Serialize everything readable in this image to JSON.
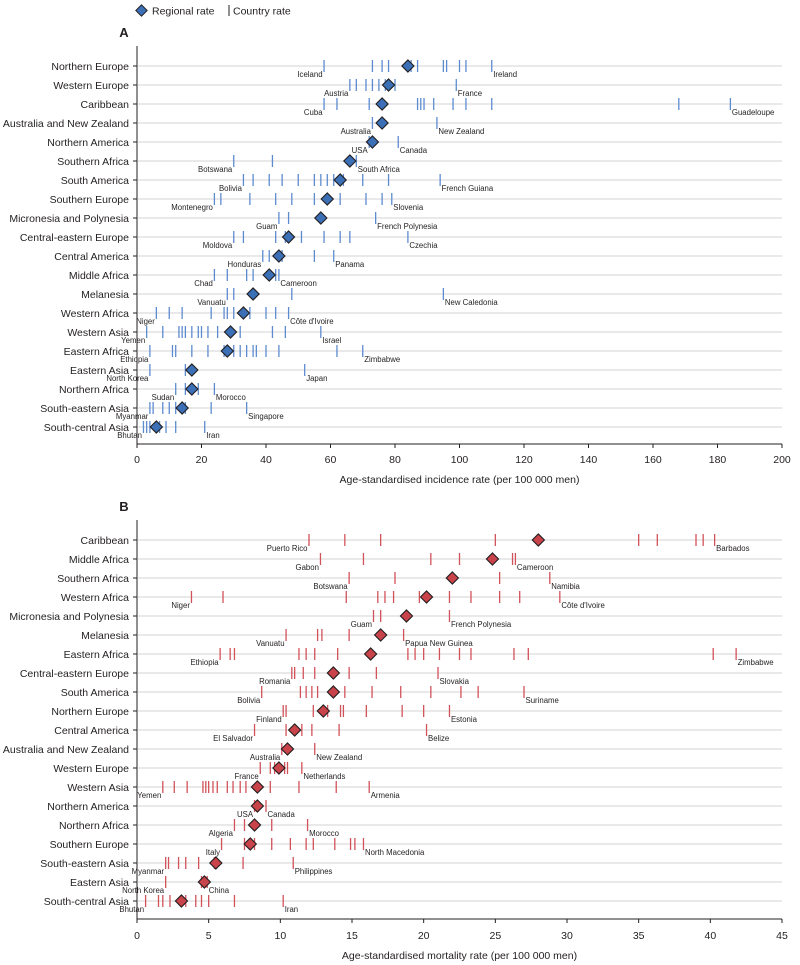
{
  "legend": {
    "regional": "Regional rate",
    "country": "Country rate"
  },
  "colors": {
    "incidence_marker": "#3b6fb6",
    "incidence_tick": "#5d8bd0",
    "mortality_marker": "#c9434a",
    "mortality_tick": "#d2525a",
    "gridline": "#a8a8a8"
  },
  "chart_data": [
    {
      "panel": "A",
      "type": "scatter",
      "xlabel": "Age-standardised incidence rate (per 100 000 men)",
      "xlim": [
        0,
        200
      ],
      "xticks": [
        0,
        20,
        40,
        60,
        80,
        100,
        120,
        140,
        160,
        180,
        200
      ],
      "rows": [
        {
          "region": "Northern Europe",
          "rate": 84,
          "countries": [
            58,
            73,
            76,
            78,
            85,
            87,
            95,
            96,
            100,
            102,
            110
          ],
          "low": "Iceland",
          "high": "Ireland"
        },
        {
          "region": "Western Europe",
          "rate": 78,
          "countries": [
            66,
            68,
            71,
            73,
            75,
            77,
            80,
            99
          ],
          "low": "Austria",
          "high": "France"
        },
        {
          "region": "Caribbean",
          "rate": 76,
          "countries": [
            58,
            62,
            72,
            87,
            88,
            89,
            92,
            98,
            102,
            110,
            168,
            184
          ],
          "low": "Cuba",
          "high": "Guadeloupe"
        },
        {
          "region": "Australia and New Zealand",
          "rate": 76,
          "countries": [
            73,
            93
          ],
          "low": "Australia",
          "high": "New Zealand"
        },
        {
          "region": "Northern America",
          "rate": 73,
          "countries": [
            72,
            81
          ],
          "low": "USA",
          "high": "Canada"
        },
        {
          "region": "Southern Africa",
          "rate": 66,
          "countries": [
            30,
            42,
            68
          ],
          "low": "Botswana",
          "high": "South Africa"
        },
        {
          "region": "South America",
          "rate": 63,
          "countries": [
            33,
            36,
            41,
            45,
            50,
            55,
            57,
            59,
            61,
            64,
            70,
            78,
            94
          ],
          "low": "Bolivia",
          "high": "French Guiana"
        },
        {
          "region": "Southern Europe",
          "rate": 59,
          "countries": [
            24,
            26,
            35,
            43,
            48,
            55,
            63,
            71,
            76,
            79
          ],
          "low": "Montenegro",
          "high": "Slovenia"
        },
        {
          "region": "Micronesia and Polynesia",
          "rate": 57,
          "countries": [
            44,
            47,
            74
          ],
          "low": "Guam",
          "high": "French Polynesia"
        },
        {
          "region": "Central-eastern Europe",
          "rate": 47,
          "countries": [
            30,
            33,
            43,
            46,
            51,
            58,
            63,
            66,
            84
          ],
          "low": "Moldova",
          "high": "Czechia"
        },
        {
          "region": "Central America",
          "rate": 44,
          "countries": [
            39,
            41,
            45,
            55,
            61
          ],
          "low": "Honduras",
          "high": "Panama"
        },
        {
          "region": "Middle Africa",
          "rate": 41,
          "countries": [
            24,
            28,
            34,
            36,
            43,
            44
          ],
          "low": "Chad",
          "high": "Cameroon"
        },
        {
          "region": "Melanesia",
          "rate": 36,
          "countries": [
            28,
            30,
            48,
            95
          ],
          "low": "Vanuatu",
          "high": "New Caledonia"
        },
        {
          "region": "Western Africa",
          "rate": 33,
          "countries": [
            6,
            10,
            14,
            23,
            27,
            28,
            30,
            35,
            40,
            43,
            47
          ],
          "low": "Niger",
          "high": "Côte d'Ivoire"
        },
        {
          "region": "Western Asia",
          "rate": 29,
          "countries": [
            3,
            8,
            13,
            14,
            15,
            17,
            19,
            20,
            22,
            25,
            32,
            42,
            46,
            57
          ],
          "low": "Yemen",
          "high": "Israel"
        },
        {
          "region": "Eastern Africa",
          "rate": 28,
          "countries": [
            4,
            11,
            12,
            17,
            22,
            27,
            30,
            32,
            34,
            36,
            37,
            40,
            44,
            62,
            70
          ],
          "low": "Ethiopia",
          "high": "Zimbabwe"
        },
        {
          "region": "Eastern Asia",
          "rate": 17,
          "countries": [
            4,
            15,
            52
          ],
          "low": "North Korea",
          "high": "Japan"
        },
        {
          "region": "Northern Africa",
          "rate": 17,
          "countries": [
            12,
            15,
            19,
            24
          ],
          "low": "Sudan",
          "high": "Morocco"
        },
        {
          "region": "South-eastern Asia",
          "rate": 14,
          "countries": [
            4,
            5,
            8,
            10,
            12,
            15,
            23,
            34
          ],
          "low": "Myanmar",
          "high": "Singapore"
        },
        {
          "region": "South-central Asia",
          "rate": 6,
          "countries": [
            2,
            3,
            4,
            7,
            9,
            12,
            21
          ],
          "low": "Bhutan",
          "high": "Iran"
        }
      ]
    },
    {
      "panel": "B",
      "type": "scatter",
      "xlabel": "Age-standardised mortality rate (per 100 000 men)",
      "xlim": [
        0,
        45
      ],
      "xticks": [
        0,
        5,
        10,
        15,
        20,
        25,
        30,
        35,
        40,
        45
      ],
      "rows": [
        {
          "region": "Caribbean",
          "rate": 28,
          "countries": [
            12,
            14.5,
            17,
            25,
            35,
            36.3,
            39,
            39.5,
            40.3
          ],
          "low": "Puerto Rico",
          "high": "Barbados"
        },
        {
          "region": "Middle Africa",
          "rate": 24.8,
          "countries": [
            12.8,
            15.8,
            20.5,
            22.5,
            26.2,
            26.4
          ],
          "low": "Gabon",
          "high": "Cameroon"
        },
        {
          "region": "Southern Africa",
          "rate": 22,
          "countries": [
            14.8,
            18,
            25.3,
            28.8
          ],
          "low": "Botswana",
          "high": "Namibia"
        },
        {
          "region": "Western Africa",
          "rate": 20.2,
          "countries": [
            3.8,
            6,
            14.6,
            16.8,
            17.3,
            17.9,
            19.7,
            21.8,
            23.3,
            25.3,
            26.7,
            29.5
          ],
          "low": "Niger",
          "high": "Côte d'Ivoire"
        },
        {
          "region": "Micronesia and Polynesia",
          "rate": 18.8,
          "countries": [
            16.5,
            17,
            21.8
          ],
          "low": "Guam",
          "high": "French Polynesia"
        },
        {
          "region": "Melanesia",
          "rate": 17,
          "countries": [
            10.4,
            12.6,
            12.9,
            14.8,
            18.6
          ],
          "low": "Vanuatu",
          "high": "Papua New Guinea"
        },
        {
          "region": "Eastern Africa",
          "rate": 16.3,
          "countries": [
            5.8,
            6.5,
            6.8,
            11.3,
            11.8,
            12.4,
            14,
            18.9,
            19.4,
            20,
            21.1,
            22.5,
            23.3,
            26.3,
            27.3,
            40.2,
            41.8
          ],
          "low": "Ethiopia",
          "high": "Zimbabwe"
        },
        {
          "region": "Central-eastern Europe",
          "rate": 13.7,
          "countries": [
            10.8,
            11,
            11.6,
            12.4,
            14.8,
            16.7,
            21
          ],
          "low": "Romania",
          "high": "Slovakia"
        },
        {
          "region": "South America",
          "rate": 13.7,
          "countries": [
            8.7,
            11.4,
            11.8,
            12.2,
            12.6,
            14.5,
            16.4,
            18.4,
            20.5,
            22.6,
            23.8,
            27
          ],
          "low": "Bolivia",
          "high": "Suriname"
        },
        {
          "region": "Northern Europe",
          "rate": 13,
          "countries": [
            10.2,
            10.4,
            12.3,
            13.3,
            14.2,
            14.4,
            16,
            18.5,
            20,
            21.8
          ],
          "low": "Finland",
          "high": "Estonia"
        },
        {
          "region": "Central America",
          "rate": 11,
          "countries": [
            8.2,
            10.4,
            11.5,
            12.2,
            14.1,
            20.2
          ],
          "low": "El Salvador",
          "high": "Belize"
        },
        {
          "region": "Australia and New Zealand",
          "rate": 10.5,
          "countries": [
            10.1,
            12.4
          ],
          "low": "Australia",
          "high": "New Zealand"
        },
        {
          "region": "Western Europe",
          "rate": 9.9,
          "countries": [
            8.6,
            9.3,
            9.6,
            10.3,
            10.5,
            11.5
          ],
          "low": "France",
          "high": "Netherlands"
        },
        {
          "region": "Western Asia",
          "rate": 8.4,
          "countries": [
            1.8,
            2.6,
            3.5,
            4.6,
            4.8,
            5,
            5.3,
            5.6,
            6.3,
            6.7,
            7.2,
            7.6,
            9.3,
            11.3,
            13.9,
            16.2
          ],
          "low": "Yemen",
          "high": "Armenia"
        },
        {
          "region": "Northern America",
          "rate": 8.4,
          "countries": [
            8.2,
            9
          ],
          "low": "USA",
          "high": "Canada"
        },
        {
          "region": "Northern Africa",
          "rate": 8.2,
          "countries": [
            6.8,
            7.5,
            8.2,
            9.4,
            11.9
          ],
          "low": "Algeria",
          "high": "Morocco"
        },
        {
          "region": "Southern Europe",
          "rate": 7.9,
          "countries": [
            5.9,
            7.5,
            8.2,
            9.4,
            10.7,
            11.8,
            12.3,
            13.8,
            14.9,
            15.2,
            15.8
          ],
          "low": "Italy",
          "high": "North Macedonia"
        },
        {
          "region": "South-eastern Asia",
          "rate": 5.5,
          "countries": [
            2,
            2.2,
            2.9,
            3.4,
            4.3,
            5.4,
            7.4,
            10.9
          ],
          "low": "Myanmar",
          "high": "Philippines"
        },
        {
          "region": "Eastern Asia",
          "rate": 4.7,
          "countries": [
            2,
            4.5,
            4.9
          ],
          "low": "North Korea",
          "high": "China"
        },
        {
          "region": "South-central Asia",
          "rate": 3.1,
          "countries": [
            0.6,
            1.5,
            1.8,
            2.3,
            3.4,
            4.1,
            4.5,
            5,
            6.8,
            10.2
          ],
          "low": "Bhutan",
          "high": "Iran"
        }
      ]
    }
  ]
}
